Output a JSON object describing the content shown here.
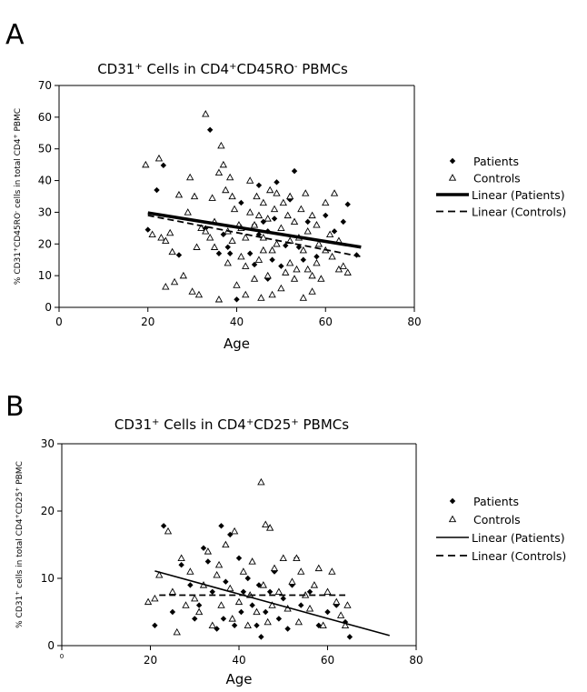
{
  "chart_data": [
    {
      "panel": "A",
      "type": "scatter",
      "title": "CD31+ Cells in CD4+CD45RO- PBMCs",
      "title_parts": [
        {
          "t": "CD31",
          "sup": false
        },
        {
          "t": "+",
          "sup": true
        },
        {
          "t": " Cells in CD4",
          "sup": false
        },
        {
          "t": "+",
          "sup": true
        },
        {
          "t": "CD45RO",
          "sup": false
        },
        {
          "t": "-",
          "sup": true
        },
        {
          "t": " PBMCs",
          "sup": false
        }
      ],
      "xlabel": "Age",
      "ylabel": "% CD31+CD45RO- cells in total CD4+ PBMC",
      "ylabel_parts": [
        {
          "t": "% CD31",
          "sup": false
        },
        {
          "t": "+",
          "sup": true
        },
        {
          "t": "CD45RO",
          "sup": false
        },
        {
          "t": "-",
          "sup": true
        },
        {
          "t": " cells in total CD4",
          "sup": false
        },
        {
          "t": "+",
          "sup": true
        },
        {
          "t": " PBMC",
          "sup": false
        }
      ],
      "xlim": [
        0,
        80
      ],
      "ylim": [
        0,
        70
      ],
      "xticks": [
        "0",
        "20",
        "40",
        "60",
        "80"
      ],
      "yticks": [
        "0",
        "10",
        "20",
        "30",
        "40",
        "50",
        "60",
        "70"
      ],
      "xtick_values": [
        0,
        20,
        40,
        60,
        80
      ],
      "ytick_values": [
        0,
        10,
        20,
        30,
        40,
        50,
        60,
        70
      ],
      "legend_position": "right",
      "legend": [
        "Patients",
        "Controls",
        "Linear (Patients)",
        "Linear (Controls)"
      ],
      "series": [
        {
          "name": "Patients",
          "marker": "diamond",
          "points": [
            [
              20,
              24.5
            ],
            [
              22,
              37
            ],
            [
              23.5,
              44.8
            ],
            [
              27,
              16.5
            ],
            [
              33,
              25
            ],
            [
              34,
              56
            ],
            [
              36,
              17
            ],
            [
              37,
              23
            ],
            [
              38,
              19
            ],
            [
              38.5,
              17
            ],
            [
              40,
              2.5
            ],
            [
              41,
              33
            ],
            [
              43,
              17
            ],
            [
              44,
              13.5
            ],
            [
              45,
              38.5
            ],
            [
              45,
              23
            ],
            [
              46,
              27
            ],
            [
              47,
              24
            ],
            [
              48,
              15
            ],
            [
              48.5,
              28
            ],
            [
              49,
              39.5
            ],
            [
              50,
              13
            ],
            [
              51,
              19.5
            ],
            [
              52,
              34
            ],
            [
              53,
              43
            ],
            [
              54,
              19
            ],
            [
              55,
              15
            ],
            [
              56,
              27
            ],
            [
              58,
              16
            ],
            [
              60,
              29
            ],
            [
              62,
              24
            ],
            [
              64,
              27
            ],
            [
              65,
              32.5
            ],
            [
              67,
              16.5
            ],
            [
              44,
              26
            ],
            [
              47,
              9
            ]
          ]
        },
        {
          "name": "Controls",
          "marker": "triangle",
          "points": [
            [
              19.5,
              45
            ],
            [
              22.5,
              47
            ],
            [
              23,
              22
            ],
            [
              24,
              21
            ],
            [
              24,
              6.5
            ],
            [
              25,
              23.5
            ],
            [
              25.5,
              17.5
            ],
            [
              27,
              35.5
            ],
            [
              28,
              10
            ],
            [
              29,
              30
            ],
            [
              29.5,
              41
            ],
            [
              30,
              5
            ],
            [
              30.5,
              35
            ],
            [
              31,
              19
            ],
            [
              31.5,
              4
            ],
            [
              32,
              25
            ],
            [
              33,
              24
            ],
            [
              33,
              61
            ],
            [
              34,
              22
            ],
            [
              34.5,
              34.5
            ],
            [
              35,
              19
            ],
            [
              35,
              27
            ],
            [
              36,
              2.5
            ],
            [
              36,
              42.5
            ],
            [
              36.5,
              51
            ],
            [
              37,
              45
            ],
            [
              37.5,
              37
            ],
            [
              38,
              14
            ],
            [
              38,
              24
            ],
            [
              38.5,
              41
            ],
            [
              39,
              35
            ],
            [
              39.5,
              31
            ],
            [
              40,
              7
            ],
            [
              40.5,
              26
            ],
            [
              41,
              16
            ],
            [
              41,
              25
            ],
            [
              42,
              4
            ],
            [
              42,
              22
            ],
            [
              43,
              30
            ],
            [
              43,
              40
            ],
            [
              44,
              26
            ],
            [
              44,
              9
            ],
            [
              44.5,
              35
            ],
            [
              45,
              15
            ],
            [
              45,
              29
            ],
            [
              45.5,
              3
            ],
            [
              46,
              22
            ],
            [
              46,
              33
            ],
            [
              47,
              10
            ],
            [
              47,
              28
            ],
            [
              47.5,
              37
            ],
            [
              48,
              4
            ],
            [
              48,
              18
            ],
            [
              48.5,
              31
            ],
            [
              49,
              20
            ],
            [
              49,
              36
            ],
            [
              50,
              6
            ],
            [
              50,
              25
            ],
            [
              50.5,
              33
            ],
            [
              51,
              11
            ],
            [
              51.5,
              29
            ],
            [
              52,
              21
            ],
            [
              52,
              35
            ],
            [
              53,
              9
            ],
            [
              53,
              27
            ],
            [
              53.5,
              12
            ],
            [
              54,
              22
            ],
            [
              54.5,
              31
            ],
            [
              55,
              3
            ],
            [
              55,
              18
            ],
            [
              55.5,
              36
            ],
            [
              56,
              12
            ],
            [
              56,
              24
            ],
            [
              57,
              5
            ],
            [
              57,
              29
            ],
            [
              58,
              14
            ],
            [
              58,
              26
            ],
            [
              58.5,
              20
            ],
            [
              59,
              9
            ],
            [
              60,
              18
            ],
            [
              60,
              33
            ],
            [
              61,
              23
            ],
            [
              61.5,
              16
            ],
            [
              62,
              36
            ],
            [
              63,
              12
            ],
            [
              63,
              21
            ],
            [
              64,
              13
            ],
            [
              65,
              11
            ],
            [
              21,
              23
            ],
            [
              26,
              8
            ],
            [
              39,
              21
            ],
            [
              42,
              13
            ],
            [
              46,
              18
            ],
            [
              52,
              14
            ],
            [
              57,
              10
            ]
          ]
        }
      ],
      "fits": [
        {
          "name": "Linear (Patients)",
          "x": [
            20,
            68
          ],
          "y": [
            29.8,
            19
          ],
          "style": "solid-thick"
        },
        {
          "name": "Linear (Controls)",
          "x": [
            20,
            68
          ],
          "y": [
            29,
            16
          ],
          "style": "dashed"
        }
      ]
    },
    {
      "panel": "B",
      "type": "scatter",
      "title": "CD31+ Cells in CD4+CD25+ PBMCs",
      "title_parts": [
        {
          "t": "CD31",
          "sup": false
        },
        {
          "t": "+",
          "sup": true
        },
        {
          "t": " Cells in CD4",
          "sup": false
        },
        {
          "t": "+",
          "sup": true
        },
        {
          "t": "CD25",
          "sup": false
        },
        {
          "t": "+",
          "sup": true
        },
        {
          "t": " PBMCs",
          "sup": false
        }
      ],
      "xlabel": "Age",
      "ylabel": "% CD31+ cells in total CD4+CD25+ PBMC",
      "ylabel_parts": [
        {
          "t": "% CD31",
          "sup": false
        },
        {
          "t": "+",
          "sup": true
        },
        {
          "t": " cells in total CD4",
          "sup": false
        },
        {
          "t": "+",
          "sup": true
        },
        {
          "t": "CD25",
          "sup": false
        },
        {
          "t": "+",
          "sup": true
        },
        {
          "t": " PBMC",
          "sup": false
        }
      ],
      "xlim": [
        0,
        80
      ],
      "ylim": [
        0,
        30
      ],
      "xticks": [
        "0",
        "20",
        "40",
        "60",
        "80"
      ],
      "yticks": [
        "0",
        "10",
        "20",
        "30"
      ],
      "xtick_values": [
        0,
        20,
        40,
        60,
        80
      ],
      "ytick_values": [
        0,
        10,
        20,
        30
      ],
      "legend_position": "right",
      "legend": [
        "Patients",
        "Controls",
        "Linear (Patients)",
        "Linear (Controls)"
      ],
      "series": [
        {
          "name": "Patients",
          "marker": "diamond",
          "points": [
            [
              21,
              3
            ],
            [
              23,
              17.8
            ],
            [
              25,
              5
            ],
            [
              27,
              12
            ],
            [
              29,
              9
            ],
            [
              30,
              4
            ],
            [
              31,
              6
            ],
            [
              32,
              14.5
            ],
            [
              33,
              12.5
            ],
            [
              34,
              8
            ],
            [
              35,
              2.5
            ],
            [
              36,
              17.8
            ],
            [
              36.5,
              4
            ],
            [
              37,
              9.5
            ],
            [
              38,
              16.5
            ],
            [
              39,
              3
            ],
            [
              40,
              13
            ],
            [
              40.5,
              5
            ],
            [
              41,
              8
            ],
            [
              42,
              10
            ],
            [
              43,
              6
            ],
            [
              44,
              3
            ],
            [
              44.5,
              9
            ],
            [
              45,
              1.3
            ],
            [
              46,
              5
            ],
            [
              47,
              8
            ],
            [
              48,
              11
            ],
            [
              49,
              4
            ],
            [
              50,
              7
            ],
            [
              51,
              2.5
            ],
            [
              52,
              9
            ],
            [
              53,
              13
            ],
            [
              54,
              6
            ],
            [
              56,
              8
            ],
            [
              58,
              3
            ],
            [
              60,
              5
            ],
            [
              62,
              6
            ],
            [
              64,
              3.5
            ],
            [
              65,
              1.3
            ]
          ]
        },
        {
          "name": "Controls",
          "marker": "triangle",
          "points": [
            [
              19.5,
              6.5
            ],
            [
              21,
              7
            ],
            [
              22,
              10.5
            ],
            [
              24,
              17
            ],
            [
              25,
              8
            ],
            [
              26,
              2
            ],
            [
              27,
              13
            ],
            [
              28,
              6
            ],
            [
              29,
              11
            ],
            [
              30,
              7
            ],
            [
              31,
              5
            ],
            [
              32,
              9
            ],
            [
              33,
              14
            ],
            [
              34,
              3
            ],
            [
              35,
              10.5
            ],
            [
              35.5,
              12
            ],
            [
              36,
              6
            ],
            [
              37,
              15
            ],
            [
              38,
              8.5
            ],
            [
              38.5,
              4
            ],
            [
              39,
              17
            ],
            [
              40,
              6.5
            ],
            [
              41,
              11
            ],
            [
              42,
              3
            ],
            [
              42.5,
              7.5
            ],
            [
              43,
              12.5
            ],
            [
              44,
              5
            ],
            [
              45,
              24.3
            ],
            [
              45.5,
              9
            ],
            [
              46,
              18
            ],
            [
              46.5,
              3.5
            ],
            [
              47,
              17.5
            ],
            [
              47.5,
              6
            ],
            [
              48,
              11.5
            ],
            [
              49,
              8
            ],
            [
              50,
              13
            ],
            [
              51,
              5.5
            ],
            [
              52,
              9.5
            ],
            [
              53,
              13
            ],
            [
              53.5,
              3.5
            ],
            [
              54,
              11
            ],
            [
              55,
              7.5
            ],
            [
              56,
              5.5
            ],
            [
              57,
              9
            ],
            [
              58,
              11.5
            ],
            [
              59,
              3
            ],
            [
              60,
              8
            ],
            [
              61,
              11
            ],
            [
              62,
              6.5
            ],
            [
              63,
              4.5
            ],
            [
              64,
              3
            ],
            [
              64.5,
              6
            ]
          ]
        }
      ],
      "fits": [
        {
          "name": "Linear (Patients)",
          "x": [
            21,
            74
          ],
          "y": [
            11.1,
            1.5
          ],
          "style": "solid"
        },
        {
          "name": "Linear (Controls)",
          "x": [
            22,
            64
          ],
          "y": [
            7.5,
            7.5
          ],
          "style": "dashed"
        }
      ]
    }
  ]
}
